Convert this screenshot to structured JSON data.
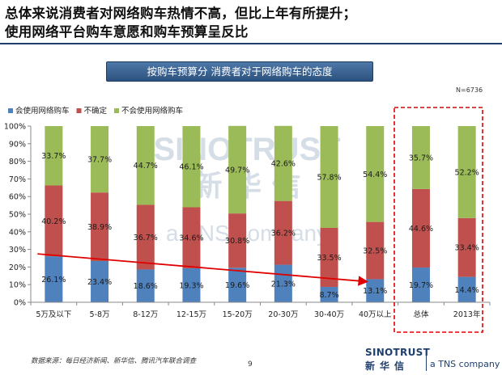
{
  "headline": {
    "line1": "总体来说消费者对网络购车热情不高，但比上年有所提升；",
    "line2": "使用网络平台购车意愿和购车预算呈反比"
  },
  "banner": "按购车预算分   消费者对于网络购车的态度",
  "sample_size": "N=6736",
  "footer": {
    "source": "数据来源：每日经济新闻、新华信、腾讯汽车联合调查",
    "page": "9",
    "brand_en": "SINOTRUST",
    "brand_cn": "新华信",
    "brand_tns": "a TNS company"
  },
  "watermark": {
    "en": "SINOTRUST",
    "cn": "新 华 信",
    "tns": "a TNS company"
  },
  "colors": {
    "will_use": "#4f81bd",
    "unsure": "#c0504d",
    "will_not_use": "#9bbb59",
    "arrow": "#e00000",
    "highlight_box": "#e00000",
    "title_rule": "#1f3f6e"
  },
  "chart_data": {
    "type": "bar",
    "stacked": true,
    "categories": [
      "5万及以下",
      "5-8万",
      "8-12万",
      "12-15万",
      "15-20万",
      "20-30万",
      "30-40万",
      "40万以上",
      "总体",
      "2013年"
    ],
    "series": [
      {
        "name": "会使用网络购车",
        "values": [
          26.1,
          23.4,
          18.6,
          19.3,
          19.6,
          21.3,
          8.7,
          13.1,
          19.7,
          14.4
        ],
        "labels": [
          "26.1%",
          "23.4%",
          "18.6%",
          "19.3%",
          "19.6%",
          "21.3%",
          "8.7%",
          "13.1%",
          "19.7%",
          "14.4%"
        ]
      },
      {
        "name": "不确定",
        "values": [
          40.2,
          38.9,
          36.7,
          34.6,
          30.8,
          36.2,
          33.5,
          32.5,
          44.6,
          33.4
        ],
        "labels": [
          "40.2%",
          "38.9%",
          "36.7%",
          "34.6%",
          "30.8%",
          "36.2%",
          "33.5%",
          "32.5%",
          "44.6%",
          "33.4%"
        ]
      },
      {
        "name": "不会使用网络购车",
        "values": [
          33.7,
          37.7,
          44.7,
          46.1,
          49.7,
          42.6,
          57.8,
          54.4,
          35.7,
          52.2
        ],
        "labels": [
          "33.7%",
          "37.7%",
          "44.7%",
          "46.1%",
          "49.7%",
          "42.6%",
          "57.8%",
          "54.4%",
          "35.7%",
          "52.2%"
        ]
      }
    ],
    "y_ticks": [
      "0%",
      "10%",
      "20%",
      "30%",
      "40%",
      "50%",
      "60%",
      "70%",
      "80%",
      "90%",
      "100%"
    ],
    "ylim": [
      0,
      100
    ],
    "legend_position": "top-left",
    "highlighted_categories": [
      "总体",
      "2013年"
    ],
    "trend_arrow": {
      "from_category": "5万及以下",
      "to_category": "40万以上",
      "from_value": 26.1,
      "to_value": 13.1
    },
    "grid": false
  }
}
